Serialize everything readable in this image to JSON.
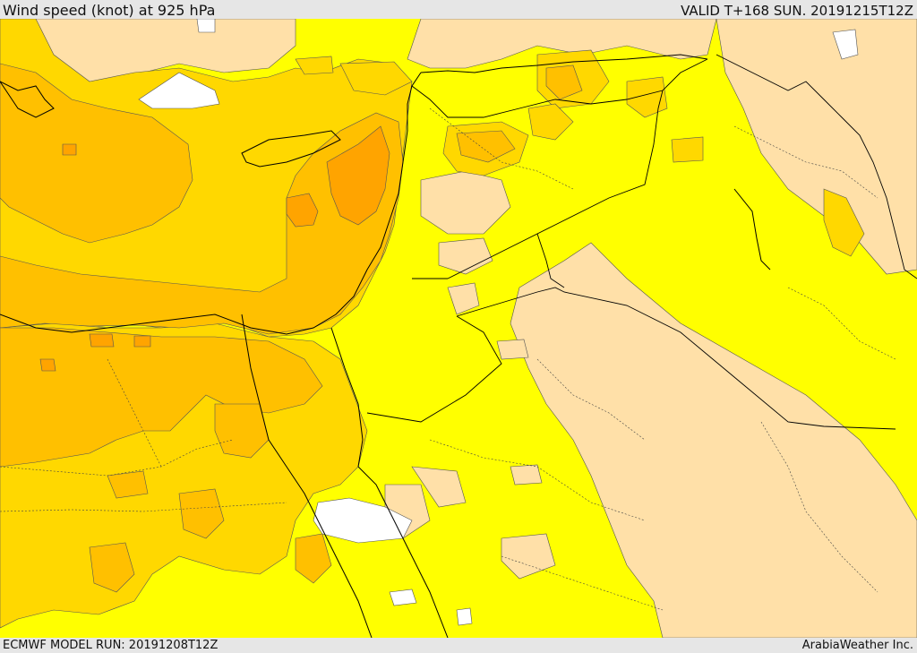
{
  "header": {
    "title": "Wind speed (knot) at 925 hPa",
    "valid": "VALID T+168 SUN. 20191215T12Z"
  },
  "footer": {
    "model_run": "ECMWF MODEL RUN: 20191208T12Z",
    "credit": "ArabiaWeather Inc."
  },
  "colors": {
    "very_low": "#ffffff",
    "low": "#ffe0a8",
    "moderate": "#ffff00",
    "fresh": "#ffd800",
    "strong": "#ffc000",
    "very_strong": "#ffa400",
    "boundary": "#000000"
  }
}
